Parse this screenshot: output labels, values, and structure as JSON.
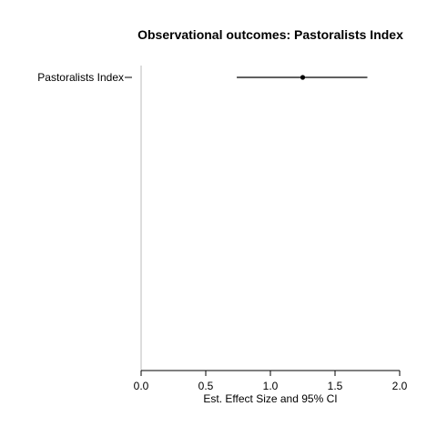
{
  "chart_data": {
    "type": "scatter",
    "title": "Observational outcomes: Pastoralists Index",
    "xlabel": "Est. Effect Size and 95% CI",
    "ylabel": "",
    "xlim": [
      0.0,
      2.0
    ],
    "x_ticks": [
      "0.0",
      "0.5",
      "1.0",
      "1.5",
      "2.0"
    ],
    "categories": [
      "Pastoralists Index"
    ],
    "points": [
      {
        "label": "Pastoralists Index",
        "estimate": 1.25,
        "ci_low": 0.74,
        "ci_high": 1.75
      }
    ],
    "grid": false,
    "colors": {
      "line": "#000000",
      "y_axis": "#bbbbbb"
    }
  }
}
